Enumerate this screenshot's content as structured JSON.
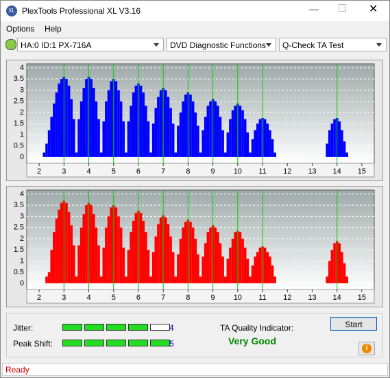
{
  "window": {
    "title": "PlexTools Professional XL V3.16"
  },
  "menu": [
    "Options",
    "Help"
  ],
  "toolbar": {
    "drive": "HA:0 ID:1  PX-716A",
    "function": "DVD Diagnostic Functions",
    "test": "Q-Check TA Test"
  },
  "chart_data": [
    {
      "type": "bar",
      "color": "#0000ff",
      "marker_color": "#00cc00",
      "markers": [
        3,
        4,
        5,
        6,
        7,
        8,
        9,
        10,
        11,
        14
      ],
      "xlim": [
        1.5,
        15.5
      ],
      "ylim": [
        -0.28,
        4.18
      ],
      "xticks": [
        2,
        3,
        4,
        5,
        6,
        7,
        8,
        9,
        10,
        11,
        12,
        13,
        14,
        15
      ],
      "yticks": [
        0,
        0.5,
        1,
        1.5,
        2,
        2.5,
        3,
        3.5,
        4
      ],
      "grid": true,
      "x": [
        2.2,
        2.3,
        2.4,
        2.5,
        2.6,
        2.7,
        2.8,
        2.9,
        3.0,
        3.1,
        3.2,
        3.3,
        3.4,
        3.5,
        3.6,
        3.7,
        3.8,
        3.9,
        4.0,
        4.1,
        4.2,
        4.3,
        4.4,
        4.5,
        4.6,
        4.7,
        4.8,
        4.9,
        5.0,
        5.1,
        5.2,
        5.3,
        5.4,
        5.5,
        5.6,
        5.7,
        5.8,
        5.9,
        6.0,
        6.1,
        6.2,
        6.3,
        6.4,
        6.5,
        6.6,
        6.7,
        6.8,
        6.9,
        7.0,
        7.1,
        7.2,
        7.3,
        7.4,
        7.5,
        7.6,
        7.7,
        7.8,
        7.9,
        8.0,
        8.1,
        8.2,
        8.3,
        8.4,
        8.5,
        8.6,
        8.7,
        8.8,
        8.9,
        9.0,
        9.1,
        9.2,
        9.3,
        9.4,
        9.5,
        9.6,
        9.7,
        9.8,
        9.9,
        10.0,
        10.1,
        10.2,
        10.3,
        10.4,
        10.5,
        10.6,
        10.7,
        10.8,
        10.9,
        11.0,
        11.1,
        11.2,
        11.3,
        11.4,
        11.5,
        13.6,
        13.7,
        13.8,
        13.9,
        14.0,
        14.1,
        14.2,
        14.3,
        14.4
      ],
      "values": [
        0.2,
        0.6,
        1.2,
        1.8,
        2.4,
        2.9,
        3.3,
        3.5,
        3.6,
        3.5,
        3.2,
        2.6,
        1.7,
        0.2,
        1.7,
        2.5,
        3.1,
        3.5,
        3.6,
        3.5,
        3.1,
        2.5,
        1.7,
        0.2,
        1.6,
        2.5,
        3.0,
        3.4,
        3.5,
        3.4,
        3.0,
        2.5,
        1.6,
        0.2,
        1.6,
        2.3,
        2.9,
        3.2,
        3.3,
        3.2,
        2.9,
        2.3,
        1.6,
        0.2,
        1.5,
        2.2,
        2.7,
        3.0,
        3.1,
        3.0,
        2.7,
        2.2,
        1.5,
        0.2,
        1.4,
        2.0,
        2.5,
        2.8,
        2.9,
        2.8,
        2.5,
        2.0,
        1.4,
        0.2,
        1.2,
        1.8,
        2.3,
        2.5,
        2.6,
        2.5,
        2.3,
        1.8,
        1.2,
        0.2,
        1.1,
        1.7,
        2.1,
        2.3,
        2.4,
        2.3,
        2.1,
        1.7,
        1.1,
        0.2,
        0.8,
        1.2,
        1.5,
        1.7,
        1.75,
        1.7,
        1.5,
        1.2,
        0.8,
        0.2,
        0.6,
        1.2,
        1.5,
        1.7,
        1.75,
        1.6,
        1.2,
        0.7,
        0.2
      ]
    },
    {
      "type": "bar",
      "color": "#ff0000",
      "marker_color": "#00cc00",
      "markers": [
        3,
        4,
        5,
        6,
        7,
        8,
        9,
        10,
        11,
        14
      ],
      "xlim": [
        1.5,
        15.5
      ],
      "ylim": [
        -0.28,
        4.18
      ],
      "xticks": [
        2,
        3,
        4,
        5,
        6,
        7,
        8,
        9,
        10,
        11,
        12,
        13,
        14,
        15
      ],
      "yticks": [
        0,
        0.5,
        1,
        1.5,
        2,
        2.5,
        3,
        3.5,
        4
      ],
      "grid": true,
      "x": [
        2.2,
        2.3,
        2.4,
        2.5,
        2.6,
        2.7,
        2.8,
        2.9,
        3.0,
        3.1,
        3.2,
        3.3,
        3.4,
        3.5,
        3.6,
        3.7,
        3.8,
        3.9,
        4.0,
        4.1,
        4.2,
        4.3,
        4.4,
        4.5,
        4.6,
        4.7,
        4.8,
        4.9,
        5.0,
        5.1,
        5.2,
        5.3,
        5.4,
        5.5,
        5.6,
        5.7,
        5.8,
        5.9,
        6.0,
        6.1,
        6.2,
        6.3,
        6.4,
        6.5,
        6.6,
        6.7,
        6.8,
        6.9,
        7.0,
        7.1,
        7.2,
        7.3,
        7.4,
        7.5,
        7.6,
        7.7,
        7.8,
        7.9,
        8.0,
        8.1,
        8.2,
        8.3,
        8.4,
        8.5,
        8.6,
        8.7,
        8.8,
        8.9,
        9.0,
        9.1,
        9.2,
        9.3,
        9.4,
        9.5,
        9.6,
        9.7,
        9.8,
        9.9,
        10.0,
        10.1,
        10.2,
        10.3,
        10.4,
        10.5,
        10.6,
        10.7,
        10.8,
        10.9,
        11.0,
        11.1,
        11.2,
        11.3,
        11.4,
        11.5,
        13.6,
        13.7,
        13.8,
        13.9,
        14.0,
        14.1,
        14.2,
        14.3,
        14.4
      ],
      "values": [
        0,
        0.3,
        0.5,
        1.5,
        2.3,
        2.9,
        3.3,
        3.6,
        3.7,
        3.6,
        3.2,
        2.6,
        1.7,
        0.3,
        1.7,
        2.5,
        3.1,
        3.5,
        3.6,
        3.5,
        3.1,
        2.5,
        1.7,
        0.3,
        1.6,
        2.5,
        3.0,
        3.4,
        3.5,
        3.4,
        3.0,
        2.5,
        1.6,
        0.3,
        1.5,
        2.3,
        2.8,
        3.15,
        3.25,
        3.15,
        2.8,
        2.3,
        1.5,
        0.3,
        1.4,
        2.1,
        2.65,
        2.95,
        3.05,
        2.95,
        2.65,
        2.1,
        1.4,
        0.3,
        1.3,
        2.0,
        2.5,
        2.75,
        2.85,
        2.75,
        2.5,
        2.0,
        1.3,
        0.3,
        1.2,
        1.8,
        2.3,
        2.5,
        2.6,
        2.5,
        2.3,
        1.8,
        1.2,
        0.3,
        1.1,
        1.6,
        2.0,
        2.3,
        2.35,
        2.3,
        2.0,
        1.6,
        1.1,
        0.3,
        0.8,
        1.2,
        1.4,
        1.6,
        1.65,
        1.6,
        1.4,
        1.2,
        0.8,
        0.3,
        0.3,
        1.0,
        1.5,
        1.8,
        1.9,
        1.8,
        1.4,
        0.9,
        0.3
      ]
    }
  ],
  "results": {
    "jitter": {
      "label": "Jitter:",
      "value": 4
    },
    "peak_shift": {
      "label": "Peak Shift:",
      "value": 5
    },
    "ta_quality": {
      "label": "TA Quality Indicator:",
      "value": "Very Good"
    }
  },
  "button": "Start",
  "status": "Ready"
}
